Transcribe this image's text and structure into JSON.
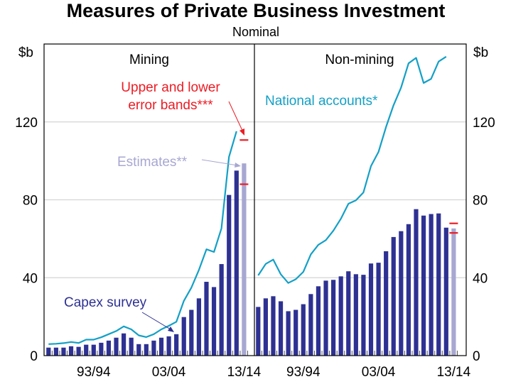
{
  "chart_data": {
    "type": "bar",
    "title": "Measures of Private Business Investment",
    "subtitle": "Nominal",
    "ylabel_left": "$b",
    "ylabel_right": "$b",
    "ylim": [
      0,
      160
    ],
    "yticks": [
      "0",
      "40",
      "80",
      "120"
    ],
    "yticks_values": [
      0,
      40,
      80,
      120
    ],
    "grid": true,
    "xtick_labels": [
      "93/94",
      "03/04",
      "13/14"
    ],
    "xtick_indices": [
      6,
      16,
      26
    ],
    "colors": {
      "capex": "#2e3192",
      "estimate": "#a7a7d2",
      "national_accounts": "#13a0c6",
      "error_bands": "#ec1c24",
      "grid": "#d4d4d4"
    },
    "panels": [
      {
        "name": "Mining",
        "capex_survey": [
          4.1,
          4.1,
          4.1,
          4.8,
          4.5,
          5.6,
          5.6,
          6.6,
          7.7,
          9.2,
          11.4,
          9.2,
          5.9,
          5.9,
          7.7,
          9.2,
          9.9,
          11.0,
          19.8,
          23.5,
          29.4,
          37.9,
          35.2,
          47.0,
          82.5,
          95.0
        ],
        "estimate": 98.7,
        "error_bands": [
          110.7,
          88.0
        ],
        "national_accounts": [
          5.9,
          6.1,
          6.4,
          7.0,
          6.5,
          8.2,
          8.2,
          9.4,
          11.0,
          12.6,
          15.0,
          13.5,
          10.4,
          9.5,
          11.0,
          13.5,
          15.3,
          17.4,
          28.1,
          34.9,
          44.0,
          54.6,
          53.2,
          65.3,
          102.0,
          115.2
        ]
      },
      {
        "name": "Non-mining",
        "capex_survey": [
          25.0,
          29.4,
          30.5,
          27.9,
          22.8,
          23.5,
          26.4,
          31.6,
          35.6,
          38.5,
          38.9,
          40.7,
          43.3,
          41.8,
          41.5,
          47.3,
          47.7,
          53.6,
          60.9,
          63.9,
          67.5,
          75.2,
          71.9,
          72.7,
          73.0,
          65.7
        ],
        "estimate": 65.3,
        "error_bands": [
          67.9,
          63.0
        ],
        "national_accounts": [
          41.2,
          47.1,
          49.3,
          41.8,
          37.3,
          39.2,
          43.0,
          52.0,
          56.9,
          59.3,
          64.2,
          70.3,
          78.0,
          79.7,
          83.8,
          97.3,
          104.6,
          117.4,
          128.5,
          137.6,
          150.1,
          152.9,
          140.0,
          142.1,
          151.0,
          153.5
        ]
      }
    ],
    "annotations": {
      "error_bands_line1": "Upper and lower",
      "error_bands_line2": "error bands***",
      "estimates": "Estimates**",
      "national_accounts": "National accounts*",
      "capex_survey": "Capex survey"
    }
  }
}
